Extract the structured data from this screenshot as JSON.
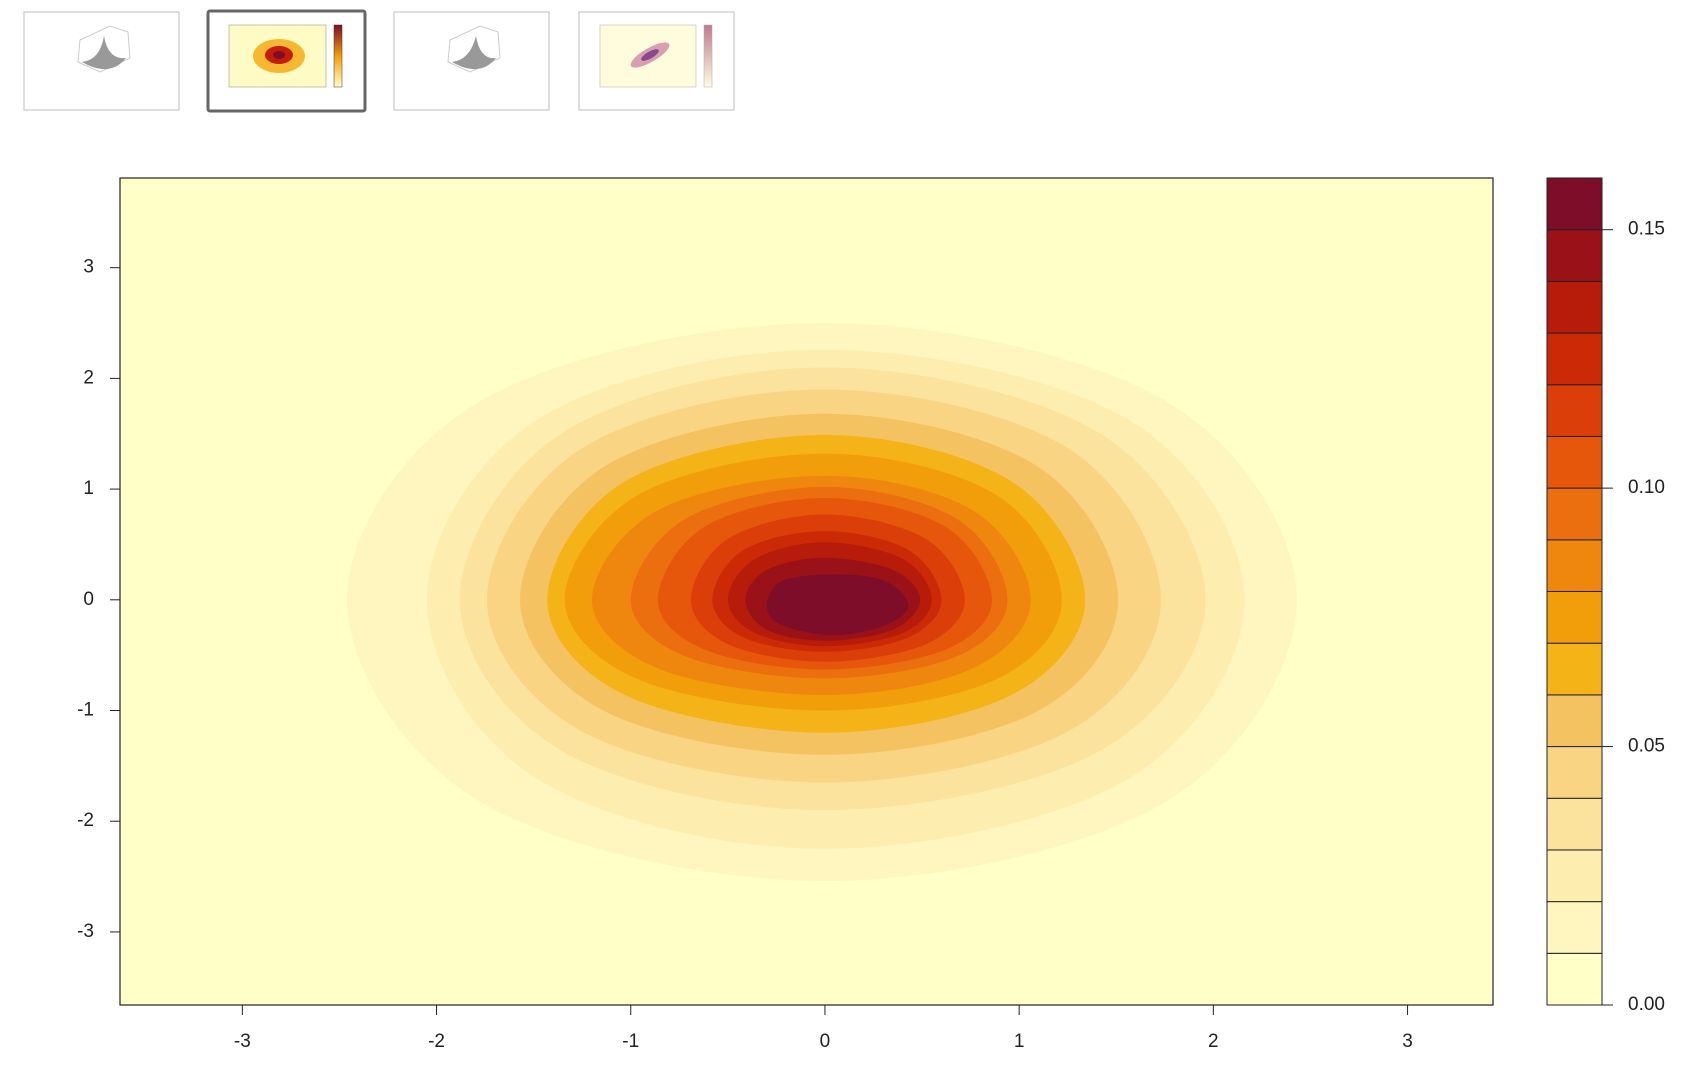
{
  "chart_data": {
    "type": "contour",
    "xlim": [
      -3.63,
      3.44
    ],
    "ylim": [
      -3.66,
      3.81
    ],
    "xticks": [
      -3,
      -2,
      -1,
      0,
      1,
      2,
      3
    ],
    "yticks": [
      -3,
      -2,
      -1,
      0,
      1,
      2,
      3
    ],
    "levels": [
      0,
      0.01,
      0.02,
      0.03,
      0.04,
      0.05,
      0.06,
      0.07,
      0.08,
      0.09,
      0.1,
      0.11,
      0.12,
      0.13,
      0.14,
      0.15,
      0.16
    ],
    "colors": [
      "#FFFFC8",
      "#FEF6BE",
      "#FDEEB0",
      "#FBE39D",
      "#F8D483",
      "#F5C262",
      "#F4B317",
      "#F29E0A",
      "#EF870E",
      "#EB6F0E",
      "#E6570B",
      "#DC3E09",
      "#CC2A06",
      "#B71C0A",
      "#9A1217",
      "#7D0D29"
    ],
    "zticks": [
      {
        "value": 0,
        "label": "0.00"
      },
      {
        "value": 0.05,
        "label": "0.05"
      },
      {
        "value": 0.1,
        "label": "0.10"
      },
      {
        "value": 0.15,
        "label": "0.15"
      }
    ],
    "contours": [
      {
        "level": 0.01,
        "x": [
          2.43,
          1.75,
          0,
          -1.77,
          -2.46,
          -1.77,
          0,
          1.75
        ],
        "y": [
          0,
          1.8,
          2.5,
          1.8,
          0,
          -1.83,
          -2.54,
          -1.83
        ]
      },
      {
        "level": 0.02,
        "x": [
          2.16,
          1.56,
          0,
          -1.48,
          -2.05,
          -1.48,
          0,
          1.56
        ],
        "y": [
          0,
          1.63,
          2.26,
          1.63,
          0,
          -1.62,
          -2.25,
          -1.62
        ]
      },
      {
        "level": 0.03,
        "x": [
          1.96,
          1.41,
          0,
          -1.35,
          -1.88,
          -1.35,
          0,
          1.41
        ],
        "y": [
          0,
          1.51,
          2.1,
          1.51,
          0,
          -1.37,
          -1.9,
          -1.37
        ]
      },
      {
        "level": 0.04,
        "x": [
          1.73,
          1.25,
          0,
          -1.25,
          -1.74,
          -1.25,
          0,
          1.25
        ],
        "y": [
          0,
          1.37,
          1.9,
          1.37,
          0,
          -1.19,
          -1.65,
          -1.19
        ]
      },
      {
        "level": 0.05,
        "x": [
          1.51,
          1.09,
          0,
          -1.13,
          -1.57,
          -1.13,
          0,
          1.09
        ],
        "y": [
          0,
          1.21,
          1.68,
          1.21,
          0,
          -1.01,
          -1.4,
          -1.01
        ]
      },
      {
        "level": 0.06,
        "x": [
          1.34,
          0.96,
          0,
          -1.03,
          -1.43,
          -1.03,
          0,
          0.96
        ],
        "y": [
          0,
          1.07,
          1.49,
          1.07,
          0,
          -0.86,
          -1.2,
          -0.86
        ]
      },
      {
        "level": 0.07,
        "x": [
          1.22,
          0.88,
          0,
          -0.96,
          -1.34,
          -0.96,
          0,
          0.88
        ],
        "y": [
          0,
          0.95,
          1.32,
          0.95,
          0,
          -0.72,
          -1.0,
          -0.72
        ]
      },
      {
        "level": 0.08,
        "x": [
          1.06,
          0.76,
          0,
          -0.86,
          -1.2,
          -0.86,
          0,
          0.76
        ],
        "y": [
          0,
          0.81,
          1.12,
          0.81,
          0,
          -0.62,
          -0.86,
          -0.62
        ]
      },
      {
        "level": 0.09,
        "x": [
          0.94,
          0.68,
          0,
          -0.72,
          -1.0,
          -0.72,
          0,
          0.68
        ],
        "y": [
          0,
          0.73,
          1.02,
          0.73,
          0,
          -0.51,
          -0.71,
          -0.51
        ]
      },
      {
        "level": 0.1,
        "x": [
          0.86,
          0.62,
          0,
          -0.62,
          -0.86,
          -0.62,
          0,
          0.62
        ],
        "y": [
          0,
          0.66,
          0.92,
          0.66,
          0,
          -0.45,
          -0.63,
          -0.45
        ]
      },
      {
        "level": 0.11,
        "x": [
          0.72,
          0.52,
          0,
          -0.5,
          -0.69,
          -0.5,
          0,
          0.52
        ],
        "y": [
          0,
          0.55,
          0.77,
          0.55,
          0,
          -0.4,
          -0.56,
          -0.4
        ]
      },
      {
        "level": 0.12,
        "x": [
          0.6,
          0.43,
          0,
          -0.42,
          -0.58,
          -0.42,
          0,
          0.43
        ],
        "y": [
          0,
          0.45,
          0.62,
          0.45,
          0,
          -0.34,
          -0.47,
          -0.34
        ]
      },
      {
        "level": 0.13,
        "x": [
          0.55,
          0.4,
          0,
          -0.36,
          -0.5,
          -0.36,
          0,
          0.4
        ],
        "y": [
          0,
          0.37,
          0.52,
          0.37,
          0,
          -0.3,
          -0.42,
          -0.3
        ]
      },
      {
        "level": 0.14,
        "x": [
          0.49,
          0.35,
          0,
          -0.3,
          -0.41,
          -0.3,
          0,
          0.35
        ],
        "y": [
          0,
          0.27,
          0.38,
          0.27,
          0,
          -0.27,
          -0.37,
          -0.27
        ]
      },
      {
        "level": 0.15,
        "x": [
          0.43,
          0.31,
          0.05,
          -0.22,
          -0.3,
          -0.22,
          0.05,
          0.31
        ],
        "y": [
          -0.05,
          0.17,
          0.23,
          0.17,
          -0.05,
          -0.23,
          -0.32,
          -0.23
        ]
      }
    ]
  }
}
